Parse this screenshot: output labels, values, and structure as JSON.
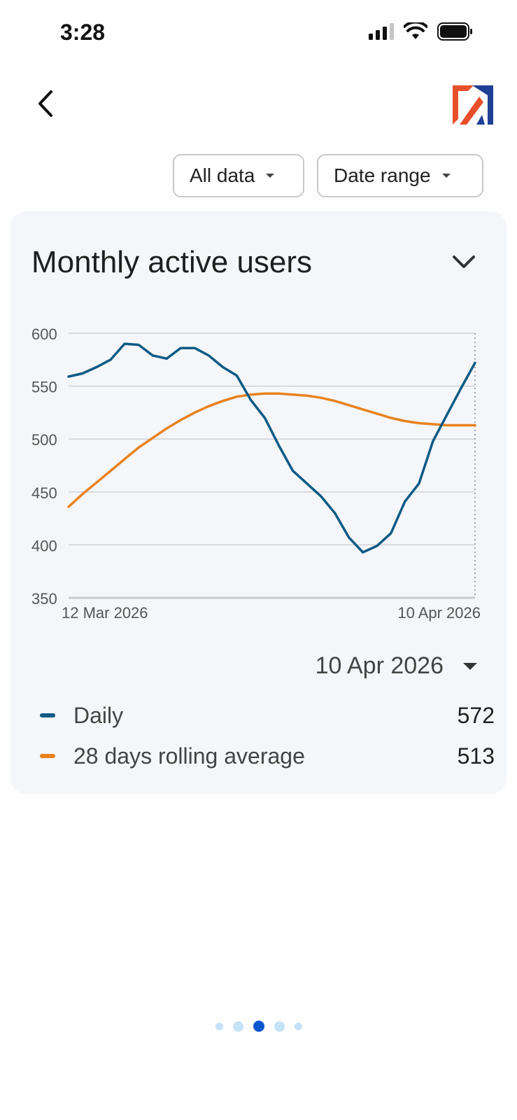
{
  "status_bar": {
    "time": "3:28"
  },
  "filters": {
    "all_data_label": "All data",
    "date_range_label": "Date range"
  },
  "card": {
    "title": "Monthly active users",
    "selected_date": "10 Apr 2026"
  },
  "legend": [
    {
      "label": "Daily",
      "value": "572",
      "color": "#0d5a85"
    },
    {
      "label": "28 days rolling average",
      "value": "513",
      "color": "#e8821e"
    }
  ],
  "chart_data": {
    "type": "line",
    "x_labels": [
      "12 Mar 2026",
      "10 Apr 2026"
    ],
    "x": [
      "2026-03-12",
      "2026-03-13",
      "2026-03-14",
      "2026-03-15",
      "2026-03-16",
      "2026-03-17",
      "2026-03-18",
      "2026-03-19",
      "2026-03-20",
      "2026-03-21",
      "2026-03-22",
      "2026-03-23",
      "2026-03-24",
      "2026-03-25",
      "2026-03-26",
      "2026-03-27",
      "2026-03-28",
      "2026-03-29",
      "2026-03-30",
      "2026-03-31",
      "2026-04-01",
      "2026-04-02",
      "2026-04-03",
      "2026-04-04",
      "2026-04-05",
      "2026-04-06",
      "2026-04-07",
      "2026-04-08",
      "2026-04-09",
      "2026-04-10"
    ],
    "series": [
      {
        "name": "Daily",
        "color": "#0d5a85",
        "values": [
          559,
          562,
          568,
          575,
          590,
          589,
          579,
          576,
          586,
          586,
          579,
          568,
          560,
          537,
          520,
          494,
          470,
          458,
          446,
          430,
          407,
          393,
          399,
          411,
          441,
          458,
          498,
          523,
          548,
          572
        ]
      },
      {
        "name": "28 days rolling average",
        "color": "#e8821e",
        "values": [
          436,
          448,
          459,
          470,
          481,
          492,
          501,
          510,
          518,
          525,
          531,
          536,
          540,
          542,
          543,
          543,
          542,
          541,
          539,
          536,
          532,
          528,
          524,
          520,
          517,
          515,
          514,
          513,
          513,
          513
        ]
      }
    ],
    "ylim": [
      350,
      600
    ],
    "yticks": [
      350,
      400,
      450,
      500,
      550,
      600
    ],
    "grid": true
  },
  "pager": {
    "count": 5,
    "active": 2
  }
}
